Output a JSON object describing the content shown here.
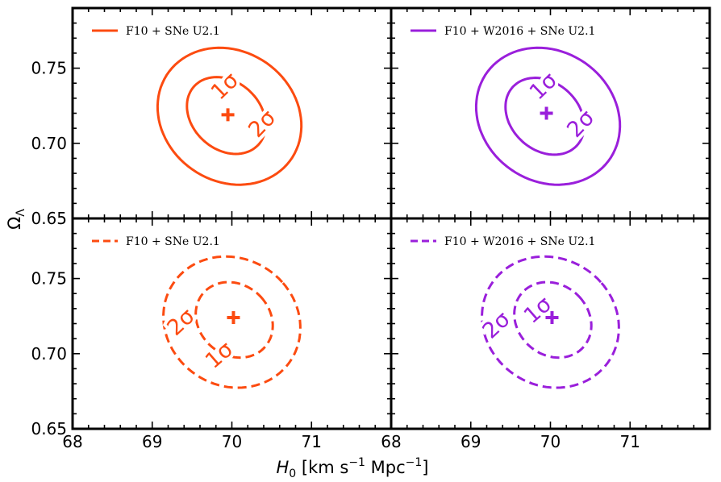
{
  "chart_data": {
    "type": "contour",
    "layout": "2x2 shared axes",
    "xlabel_symbol": "H",
    "xlabel_subscript": "0",
    "xlabel_units_prefix": " [km s",
    "xlabel_units_exp1": "−1",
    "xlabel_units_mid": " Mpc",
    "xlabel_units_exp2": "−1",
    "xlabel_units_suffix": "]",
    "ylabel_symbol": "Ω",
    "ylabel_subscript": "Λ",
    "xlim": [
      68,
      72
    ],
    "ylim": [
      0.65,
      0.79
    ],
    "xticks": [
      68,
      69,
      70,
      71
    ],
    "xtick_labels": [
      "68",
      "69",
      "70",
      "71"
    ],
    "yticks_top": [
      0.75,
      0.7,
      0.65
    ],
    "ytick_labels_top": [
      "0.75",
      "0.70",
      "0.65"
    ],
    "yticks_bottom": [
      0.75,
      0.7,
      0.65
    ],
    "ytick_labels_bottom": [
      "0.75",
      "0.70",
      "0.65"
    ],
    "panels": [
      {
        "legend": "F10 + SNe U2.1",
        "color": "#fc4b10",
        "linestyle": "solid",
        "best_fit": [
          69.95,
          0.719
        ],
        "contours": [
          {
            "level": "1σ",
            "center": [
              69.93,
              0.7185
            ],
            "sx": 0.56,
            "sy": 0.036,
            "angle_deg": 41,
            "label": "1σ",
            "label_pos": [
              69.92,
              0.7375
            ]
          },
          {
            "level": "2σ",
            "center": [
              69.97,
              0.718
            ],
            "sx": 1.08,
            "sy": 0.062,
            "angle_deg": 43,
            "label": "2σ",
            "label_pos": [
              70.39,
              0.7125
            ]
          }
        ]
      },
      {
        "legend": "F10 + W2016 + SNe U2.1",
        "color": "#9a1fdb",
        "linestyle": "solid",
        "best_fit": [
          69.95,
          0.72
        ],
        "contours": [
          {
            "level": "1σ",
            "center": [
              69.93,
              0.718
            ],
            "sx": 0.56,
            "sy": 0.036,
            "angle_deg": 41,
            "label": "1σ",
            "label_pos": [
              69.92,
              0.7375
            ]
          },
          {
            "level": "2σ",
            "center": [
              69.97,
              0.718
            ],
            "sx": 1.08,
            "sy": 0.062,
            "angle_deg": 43,
            "label": "2σ",
            "label_pos": [
              70.39,
              0.7125
            ]
          }
        ]
      },
      {
        "legend": "F10 + SNe U2.1",
        "color": "#fc4b10",
        "linestyle": "dashed",
        "best_fit": [
          70.02,
          0.724
        ],
        "contours": [
          {
            "level": "1σ",
            "center": [
              70.03,
              0.7225
            ],
            "sx": 0.58,
            "sy": 0.034,
            "angle_deg": 38,
            "label": "1σ",
            "label_pos": [
              69.85,
              0.6985
            ]
          },
          {
            "level": "2σ",
            "center": [
              70.0,
              0.721
            ],
            "sx": 1.06,
            "sy": 0.058,
            "angle_deg": 40,
            "label": "2σ",
            "label_pos": [
              69.37,
              0.7205
            ]
          }
        ]
      },
      {
        "legend": "F10 + W2016 + SNe U2.1",
        "color": "#9a1fdb",
        "linestyle": "dashed",
        "best_fit": [
          70.02,
          0.724
        ],
        "contours": [
          {
            "level": "1σ",
            "center": [
              70.03,
              0.7225
            ],
            "sx": 0.58,
            "sy": 0.034,
            "angle_deg": 38,
            "label": "1σ",
            "label_pos": [
              69.85,
              0.7285
            ]
          },
          {
            "level": "2σ",
            "center": [
              70.0,
              0.721
            ],
            "sx": 1.06,
            "sy": 0.058,
            "angle_deg": 40,
            "label": "2σ",
            "label_pos": [
              69.33,
              0.7185
            ]
          }
        ]
      }
    ]
  }
}
